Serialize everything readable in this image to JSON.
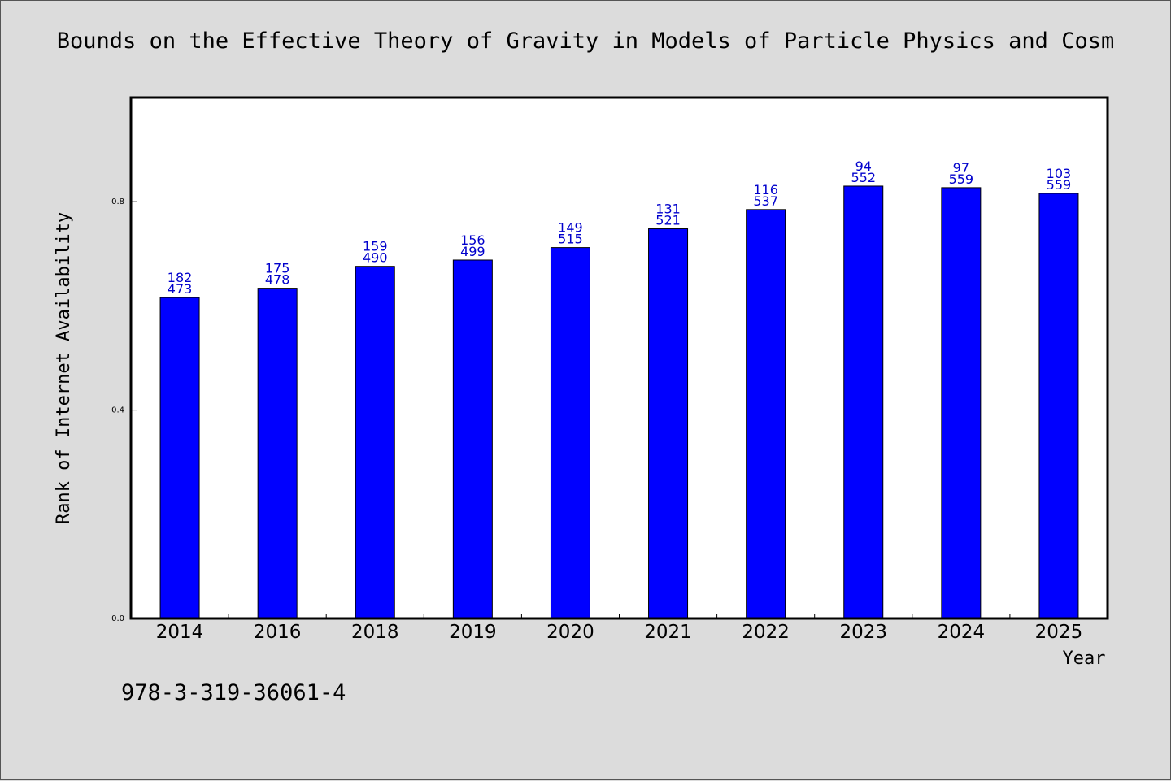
{
  "title": "Bounds on the Effective Theory of Gravity in Models of Particle Physics and Cosm",
  "footer_text": "978-3-319-36061-4",
  "colors": {
    "bar": "#0000ff",
    "label": "#0000cc",
    "background": "#dcdcdc",
    "plot": "#ffffff"
  },
  "chart_data": {
    "type": "bar",
    "title": "Bounds on the Effective Theory of Gravity in Models of Particle Physics and Cosm",
    "xlabel": "Year",
    "ylabel": "Rank of Internet Availability",
    "ylim": [
      0,
      1.0
    ],
    "yticks": [
      "0.0",
      "0.4",
      "0.8"
    ],
    "grid": false,
    "categories": [
      "2014",
      "2016",
      "2018",
      "2019",
      "2020",
      "2021",
      "2022",
      "2023",
      "2024",
      "2025"
    ],
    "values": [
      0.616,
      0.634,
      0.676,
      0.688,
      0.712,
      0.748,
      0.785,
      0.83,
      0.827,
      0.816
    ],
    "annotations_top": [
      "182",
      "175",
      "159",
      "156",
      "149",
      "131",
      "116",
      "94",
      "97",
      "103"
    ],
    "annotations_bottom": [
      "473",
      "478",
      "490",
      "499",
      "515",
      "521",
      "537",
      "552",
      "559",
      "559"
    ]
  }
}
